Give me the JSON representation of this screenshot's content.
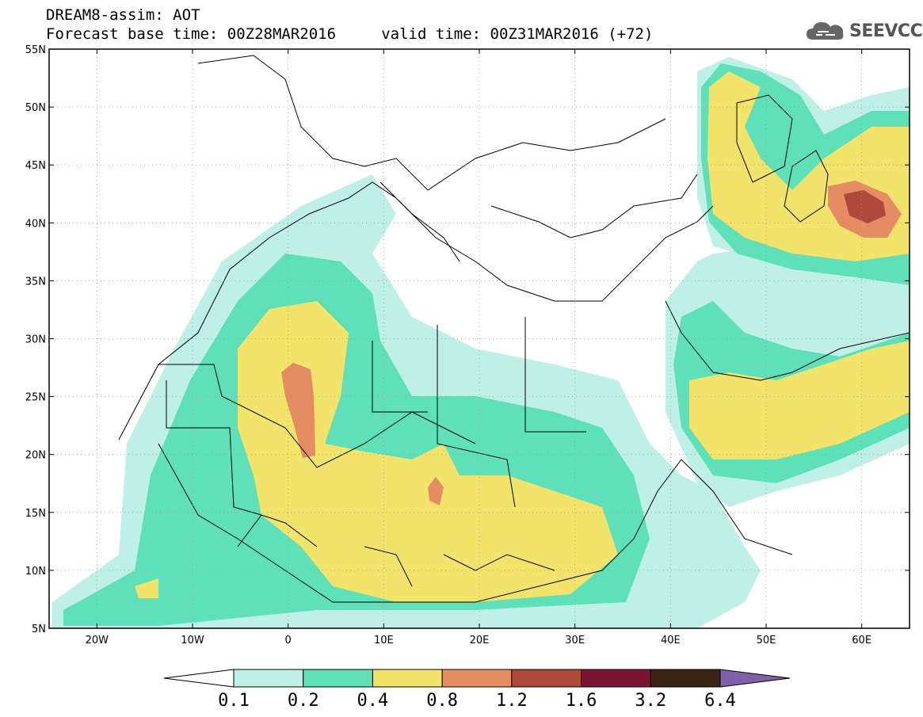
{
  "header": {
    "line1": "DREAM8-assim: AOT",
    "line2": "Forecast base time: 00Z28MAR2016     valid time: 00Z31MAR2016 (+72)"
  },
  "logo": {
    "text": "SEEVCCC",
    "icon": "cloud-logo-icon"
  },
  "map": {
    "lon_range": [
      -25,
      65
    ],
    "lat_range": [
      5,
      55
    ],
    "lat_ticks": [
      "55N",
      "50N",
      "45N",
      "40N",
      "35N",
      "30N",
      "25N",
      "20N",
      "15N",
      "10N",
      "5N"
    ],
    "lon_ticks": [
      "20W",
      "10W",
      "0",
      "10E",
      "20E",
      "30E",
      "40E",
      "50E",
      "60E"
    ]
  },
  "colorbar": {
    "labels": [
      "0.1",
      "0.2",
      "0.4",
      "0.8",
      "1.2",
      "1.6",
      "3.2",
      "6.4"
    ],
    "colors": [
      "#ffffff",
      "#bff0e6",
      "#5ee0b8",
      "#f2e36b",
      "#e58c62",
      "#ad4a3a",
      "#7a1432",
      "#3a2414",
      "#8060a8"
    ]
  }
}
